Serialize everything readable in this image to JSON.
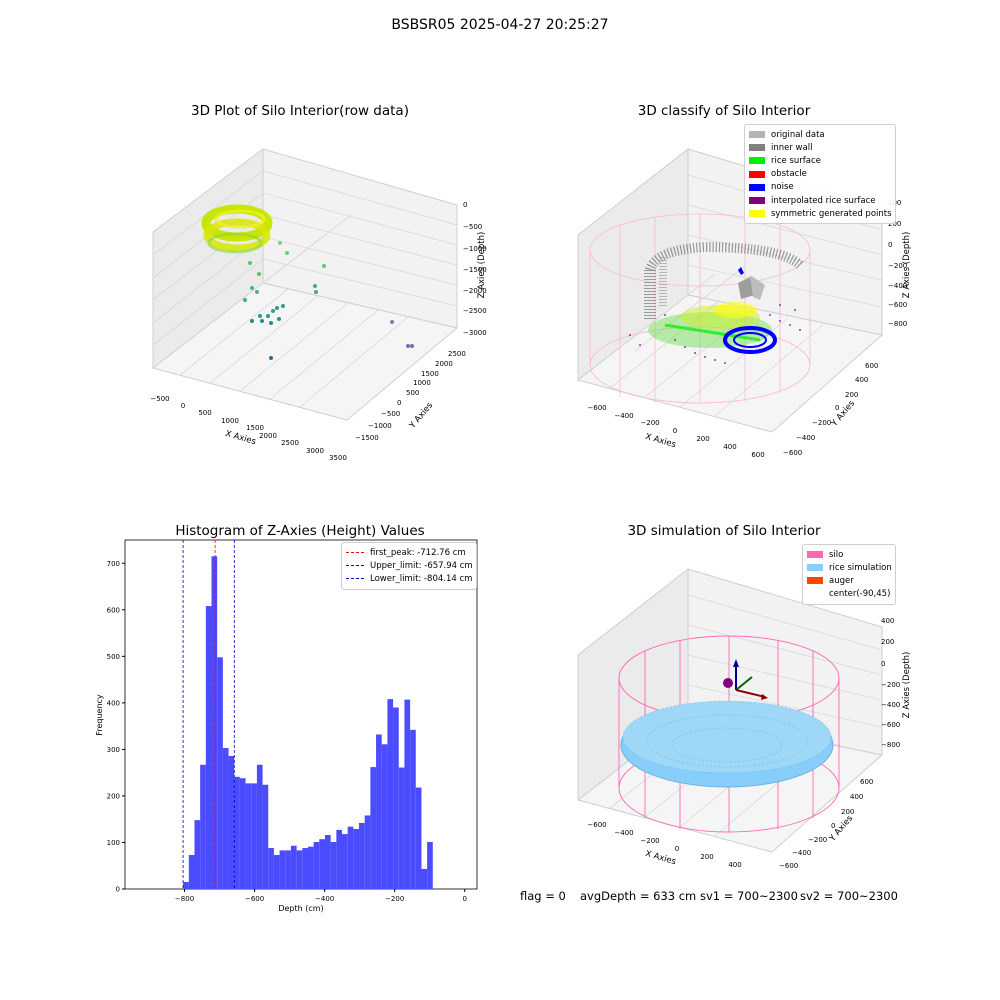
{
  "suptitle": "BSBSR05 2025-04-27 20:25:27",
  "colors": {
    "original_data": "#b4b4b4",
    "inner_wall": "#808080",
    "rice_surface": "#00ee00",
    "obstacle": "#ff0000",
    "noise": "#0000ff",
    "interpolated": "#800080",
    "symmetric": "#ffff00",
    "silo": "#ff69b4",
    "rice_sim": "#87cefa",
    "auger": "#ff4500",
    "hist_bar": "#4b4bff",
    "peak_line": "#ff0000",
    "limit_line": "#0000cc"
  },
  "panels": {
    "raw": {
      "title": "3D Plot of Silo Interior(row data)",
      "xlabel": "X Axies",
      "ylabel": "Y Axies",
      "zlabel": "Z Axies (Depth)",
      "xticks": [
        "−500",
        "0",
        "500",
        "1000",
        "1500",
        "2000",
        "2500",
        "3000",
        "3500"
      ],
      "yticks": [
        "−1500",
        "−1000",
        "−500",
        "0",
        "500",
        "1000",
        "1500",
        "2000",
        "2500"
      ],
      "zticks": [
        "0",
        "−500",
        "−1000",
        "−1500",
        "−2000",
        "−2500",
        "−3000"
      ]
    },
    "classify": {
      "title": "3D classify of Silo Interior",
      "xlabel": "X Axies",
      "ylabel": "Y Axies",
      "zlabel": "Z Axies (Depth)",
      "xticks": [
        "−600",
        "−400",
        "−200",
        "0",
        "200",
        "400",
        "600"
      ],
      "yticks": [
        "−600",
        "−400",
        "−200",
        "0",
        "200",
        "400",
        "600"
      ],
      "zticks": [
        "400",
        "200",
        "0",
        "−200",
        "−400",
        "−600",
        "−800"
      ],
      "legend": [
        {
          "label": "original data",
          "color": "#b4b4b4"
        },
        {
          "label": "inner wall",
          "color": "#808080"
        },
        {
          "label": "rice surface",
          "color": "#00ee00"
        },
        {
          "label": "obstacle",
          "color": "#ff0000"
        },
        {
          "label": "noise",
          "color": "#0000ff"
        },
        {
          "label": "interpolated rice surface",
          "color": "#800080"
        },
        {
          "label": "symmetric generated points",
          "color": "#ffff00"
        }
      ]
    },
    "simulation": {
      "title": "3D simulation of Silo Interior",
      "xlabel": "X Axies",
      "ylabel": "Y Axies",
      "zlabel": "Z Axies (Depth)",
      "xticks": [
        "−600",
        "−400",
        "−200",
        "0",
        "200",
        "400"
      ],
      "yticks": [
        "−600",
        "−400",
        "−200",
        "0",
        "200",
        "400",
        "600"
      ],
      "zticks": [
        "400",
        "200",
        "0",
        "−200",
        "−400",
        "−600",
        "−800"
      ],
      "legend": [
        {
          "label": "silo",
          "color": "#ff69b4"
        },
        {
          "label": "rice simulation",
          "color": "#87cefa"
        },
        {
          "label": "auger",
          "color": "#ff4500"
        },
        {
          "label": "center(-90,45)",
          "color": ""
        }
      ]
    }
  },
  "footer": {
    "flag": "flag = 0",
    "avg": "avgDepth = 633 cm",
    "sv1": "sv1 = 700~2300",
    "sv2": "sv2 = 700~2300"
  },
  "chart_data": [
    {
      "type": "bar",
      "title": "Histogram of Z-Axies (Height) Values",
      "xlabel": "Depth (cm)",
      "ylabel": "Frequency",
      "xlim": [
        -970,
        35
      ],
      "ylim": [
        0,
        750
      ],
      "xticks": [
        -800,
        -600,
        -400,
        -200,
        0
      ],
      "yticks": [
        0,
        100,
        200,
        300,
        400,
        500,
        600,
        700
      ],
      "bin_width": 16.2,
      "bin_start": -804,
      "values": [
        15,
        73,
        148,
        267,
        608,
        715,
        498,
        303,
        286,
        241,
        238,
        227,
        227,
        267,
        224,
        88,
        73,
        83,
        83,
        93,
        83,
        88,
        91,
        101,
        107,
        116,
        101,
        127,
        118,
        134,
        129,
        142,
        158,
        262,
        332,
        311,
        408,
        390,
        261,
        407,
        342,
        218,
        43,
        101
      ],
      "reference_lines": [
        {
          "name": "first_peak: -712.76 cm",
          "x": -712.76,
          "color": "#ff0000"
        },
        {
          "name": "Upper_limit: -657.94 cm",
          "x": -657.94,
          "color": "#0000cc"
        },
        {
          "name": "Lower_limit: -804.14 cm",
          "x": -804.14,
          "color": "#0000cc"
        }
      ]
    }
  ]
}
